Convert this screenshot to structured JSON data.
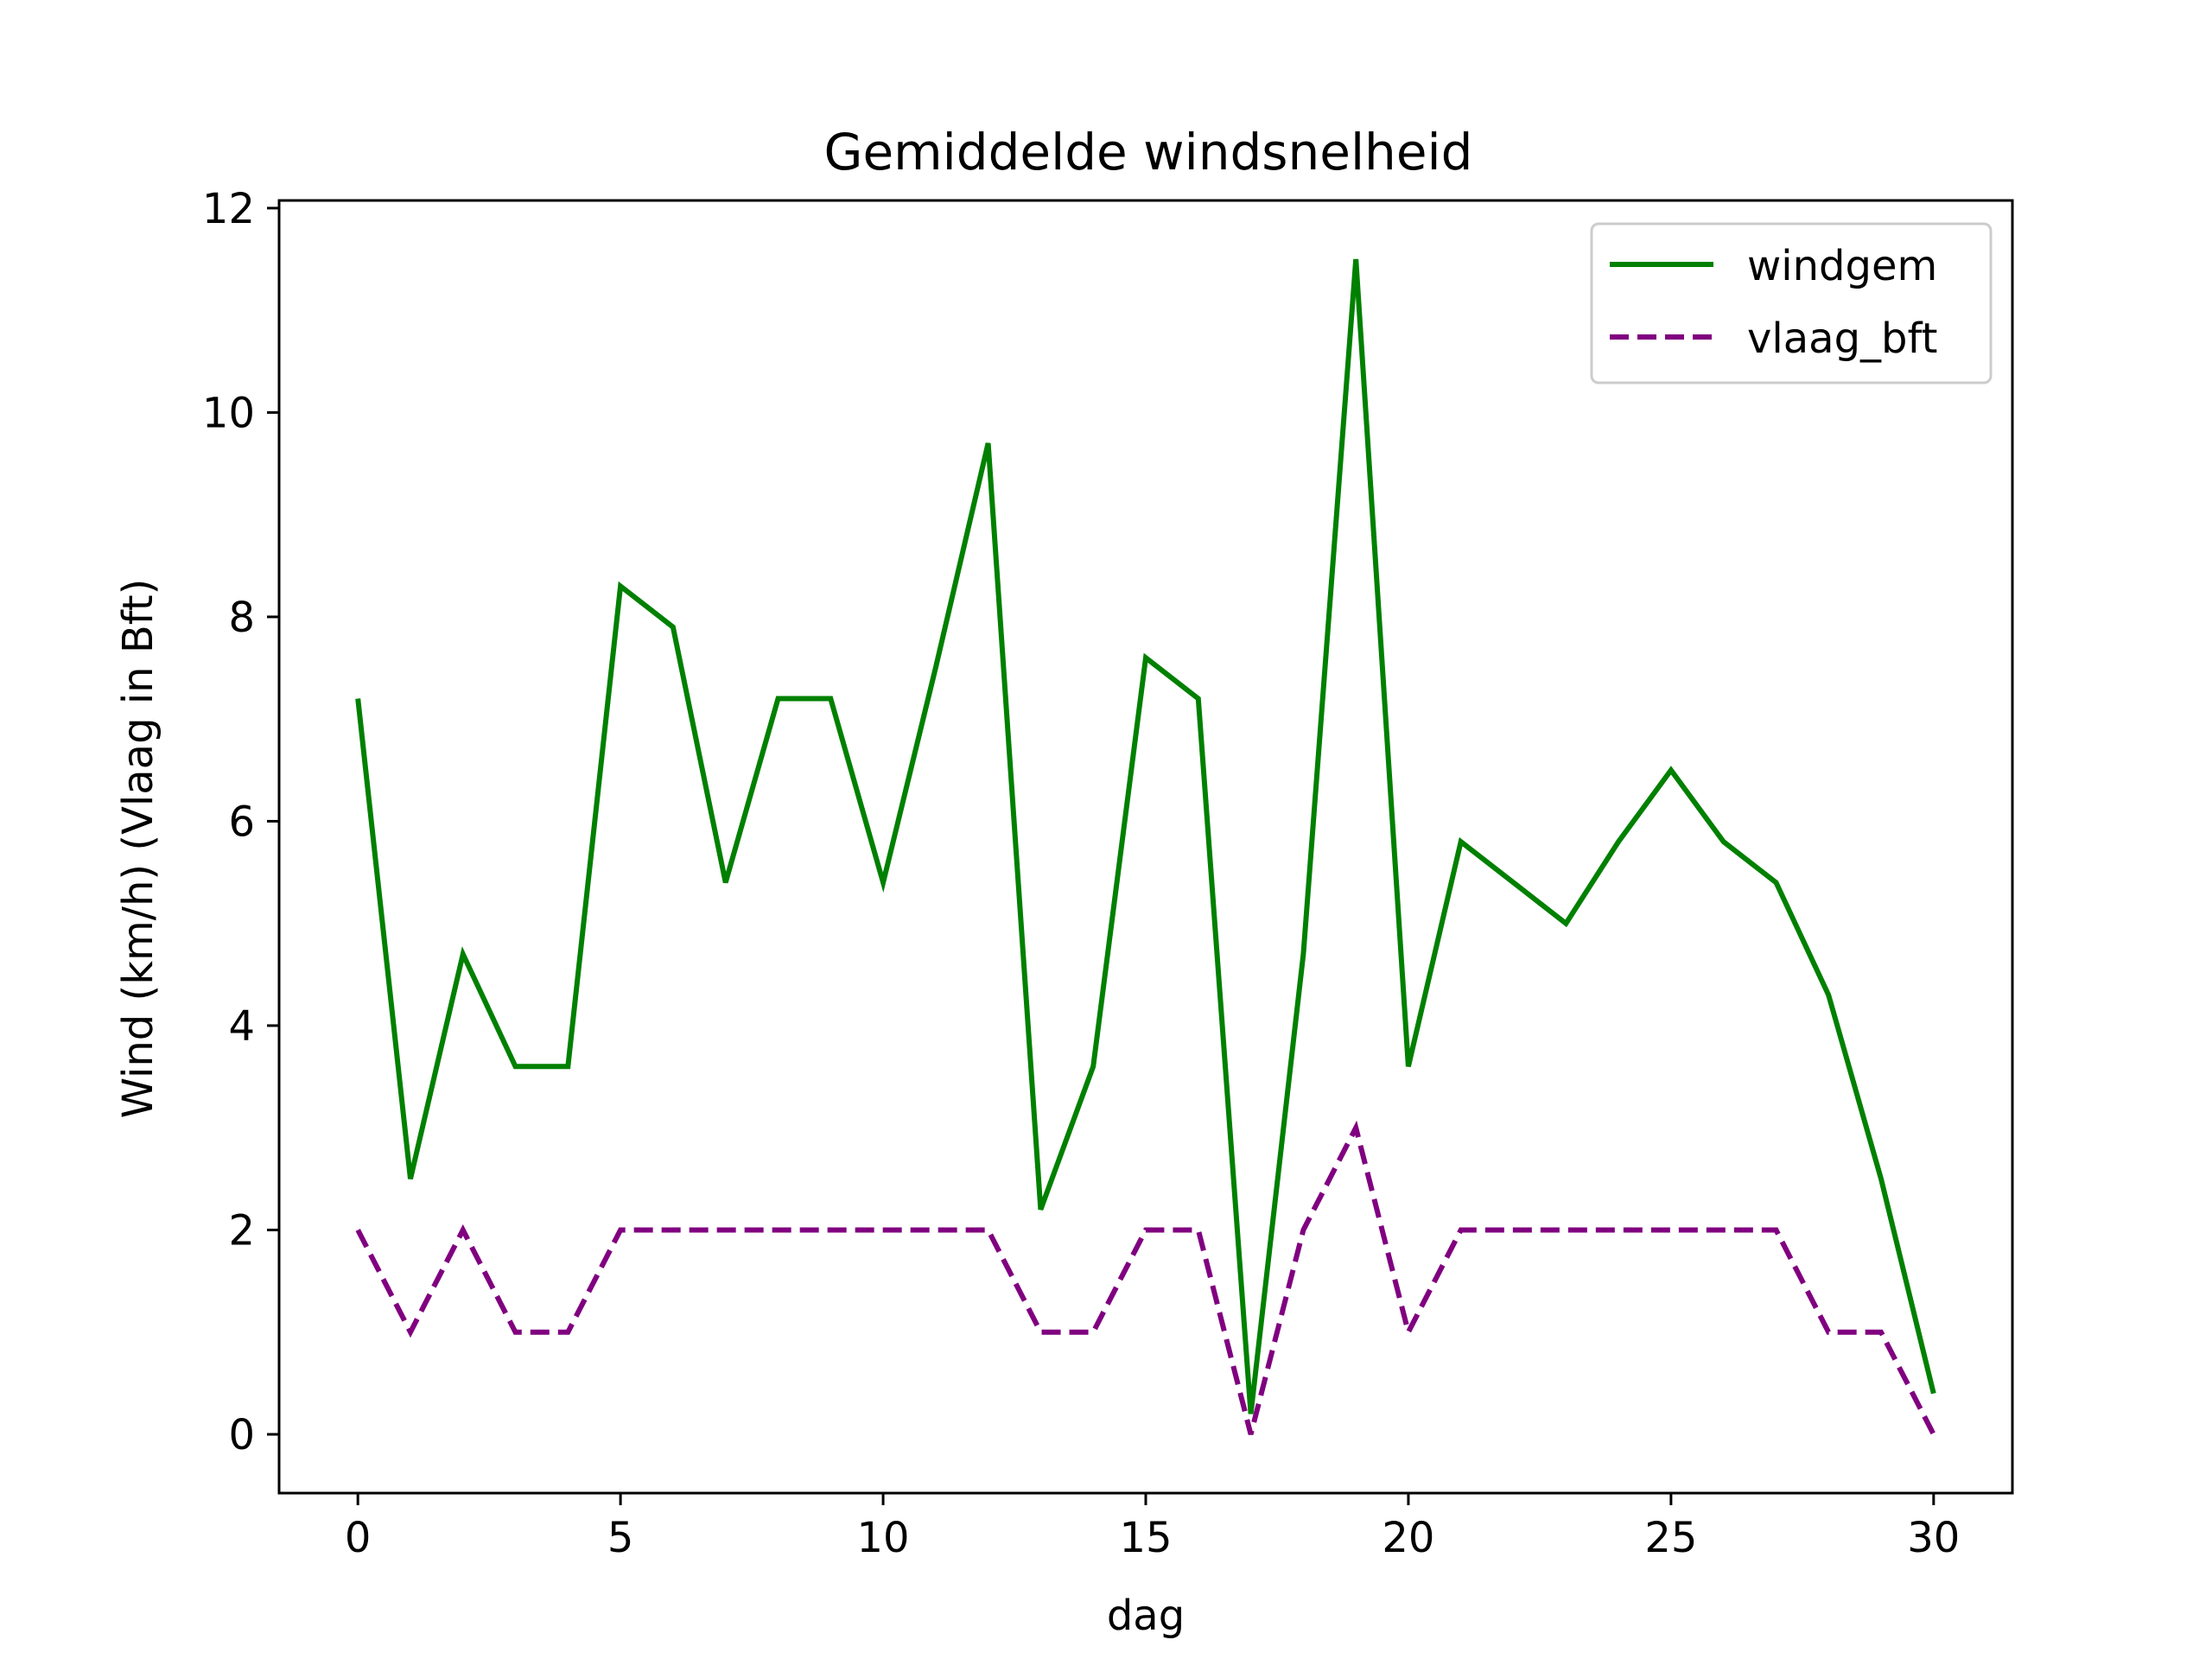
{
  "chart_data": {
    "type": "line",
    "title": "Gemiddelde windsnelheid",
    "xlabel": "dag",
    "ylabel": "Wind (km/h) (Vlaag in Bft)",
    "xlim": [
      -1.5,
      31.5
    ],
    "ylim": [
      -0.575,
      12.075
    ],
    "xticks": [
      0,
      5,
      10,
      15,
      20,
      25,
      30
    ],
    "yticks": [
      0,
      2,
      4,
      6,
      8,
      10,
      12
    ],
    "grid": false,
    "legend_position": "top-right",
    "x": [
      0,
      1,
      2,
      3,
      4,
      5,
      6,
      7,
      8,
      9,
      10,
      11,
      12,
      13,
      14,
      15,
      16,
      17,
      18,
      19,
      20,
      21,
      22,
      23,
      24,
      25,
      26,
      27,
      28,
      29,
      30
    ],
    "series": [
      {
        "name": "windgem",
        "color": "#008000",
        "linestyle": "solid",
        "values": [
          7.2,
          2.5,
          4.7,
          3.6,
          3.6,
          8.3,
          7.9,
          5.4,
          7.2,
          7.2,
          5.4,
          7.5,
          9.7,
          2.2,
          3.6,
          7.6,
          7.2,
          0.2,
          4.7,
          11.5,
          3.6,
          5.8,
          5.4,
          5.0,
          5.8,
          6.5,
          5.8,
          5.4,
          4.3,
          2.5,
          0.4
        ]
      },
      {
        "name": "vlaag_bft",
        "color": "#800080",
        "linestyle": "dashed",
        "values": [
          2,
          1,
          2,
          1,
          1,
          2,
          2,
          2,
          2,
          2,
          2,
          2,
          2,
          1,
          1,
          2,
          2,
          0,
          2,
          3,
          1,
          2,
          2,
          2,
          2,
          2,
          2,
          2,
          1,
          1,
          0
        ]
      }
    ]
  }
}
